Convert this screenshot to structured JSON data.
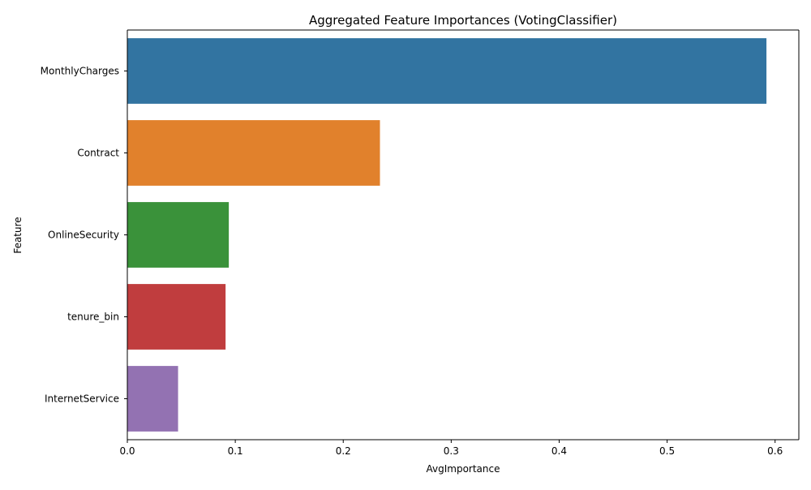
{
  "chart_data": {
    "type": "bar",
    "orientation": "horizontal",
    "title": "Aggregated Feature Importances (VotingClassifier)",
    "xlabel": "AvgImportance",
    "ylabel": "Feature",
    "categories": [
      "MonthlyCharges",
      "Contract",
      "OnlineSecurity",
      "tenure_bin",
      "InternetService"
    ],
    "values": [
      0.592,
      0.234,
      0.094,
      0.091,
      0.047
    ],
    "colors": [
      "#3274a1",
      "#e1812c",
      "#3a923a",
      "#c03d3e",
      "#9372b2"
    ],
    "xlim": [
      0,
      0.622
    ],
    "xticks": [
      0.0,
      0.1,
      0.2,
      0.3,
      0.4,
      0.5,
      0.6
    ],
    "xtick_labels": [
      "0.0",
      "0.1",
      "0.2",
      "0.3",
      "0.4",
      "0.5",
      "0.6"
    ],
    "grid": false,
    "legend": "none"
  }
}
